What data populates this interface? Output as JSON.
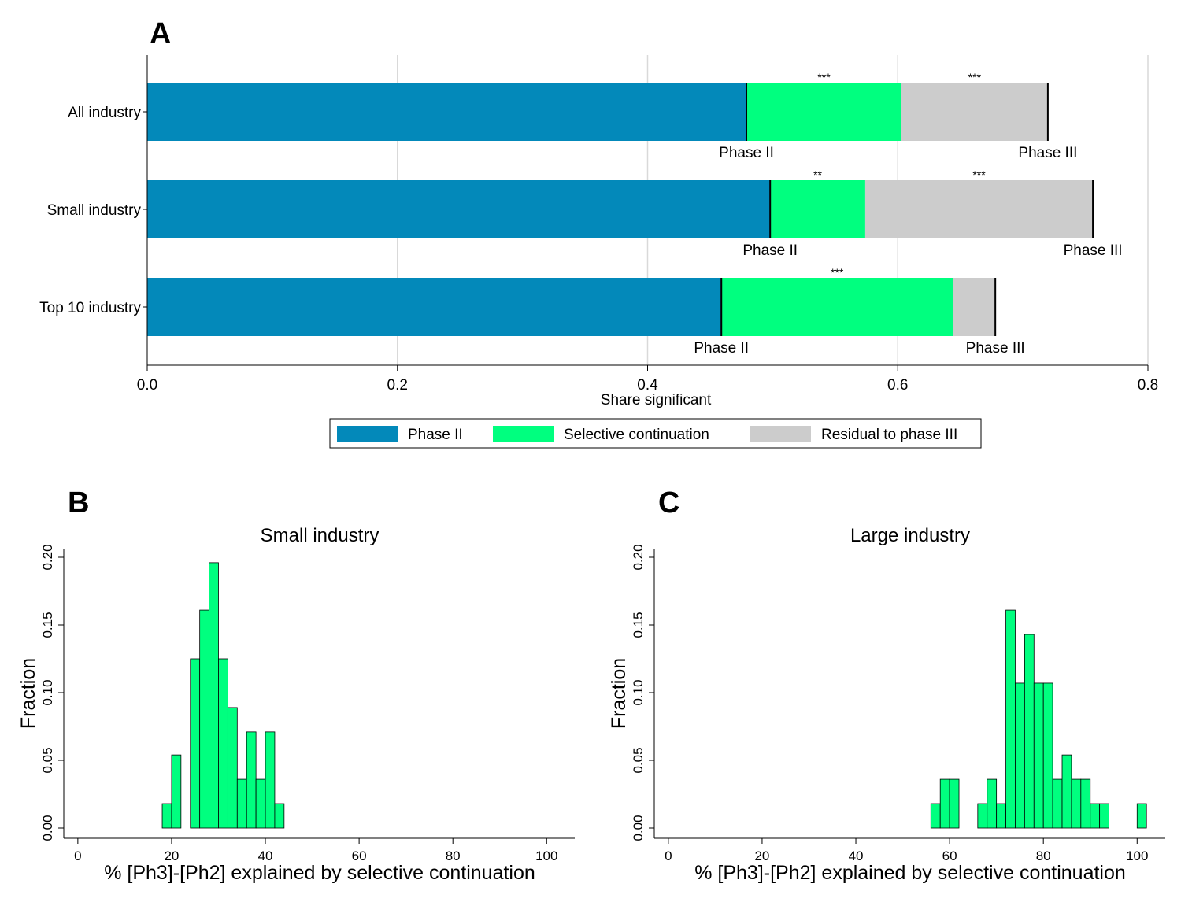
{
  "colors": {
    "phase2": "#0389BA",
    "selective": "#00FF7F",
    "residual": "#CCCCCC",
    "grid": "#D9D9D9",
    "hist_fill": "#00FF7F"
  },
  "chart_data": [
    {
      "panel": "A",
      "type": "bar",
      "orientation": "horizontal",
      "stacked": true,
      "title": "",
      "xlabel": "Share significant",
      "ylabel": "",
      "xlim": [
        0,
        0.8
      ],
      "xticks": [
        "0.0",
        "0.2",
        "0.4",
        "0.6",
        "0.8"
      ],
      "categories": [
        "All industry",
        "Small industry",
        "Top 10 industry"
      ],
      "series": [
        {
          "name": "Phase II",
          "values": [
            0.479,
            0.498,
            0.459
          ]
        },
        {
          "name": "Selective continuation",
          "values": [
            0.124,
            0.076,
            0.185
          ]
        },
        {
          "name": "Residual to phase III",
          "values": [
            0.117,
            0.182,
            0.034
          ]
        }
      ],
      "significance": [
        {
          "selective": "***",
          "residual": "***"
        },
        {
          "selective": "**",
          "residual": "***"
        },
        {
          "selective": "***",
          "residual": ""
        }
      ],
      "bar_labels": {
        "phase2": "Phase II",
        "phase3": "Phase III"
      },
      "legend": [
        "Phase II",
        "Selective continuation",
        "Residual to phase III"
      ],
      "legend_position": "bottom",
      "grid": true
    },
    {
      "panel": "B",
      "type": "bar",
      "title": "Small industry",
      "xlabel": "% [Ph3]-[Ph2] explained by selective continuation",
      "ylabel": "Fraction",
      "xlim": [
        -3,
        106
      ],
      "ylim": [
        0,
        0.205
      ],
      "xticks": [
        "0",
        "20",
        "40",
        "60",
        "80",
        "100"
      ],
      "yticks": [
        "0.00",
        "0.05",
        "0.10",
        "0.15",
        "0.20"
      ],
      "bin_width": 2,
      "bins": [
        {
          "x": 18,
          "value": 0.018
        },
        {
          "x": 20,
          "value": 0.054
        },
        {
          "x": 24,
          "value": 0.125
        },
        {
          "x": 26,
          "value": 0.161
        },
        {
          "x": 28,
          "value": 0.196
        },
        {
          "x": 30,
          "value": 0.125
        },
        {
          "x": 32,
          "value": 0.089
        },
        {
          "x": 34,
          "value": 0.036
        },
        {
          "x": 36,
          "value": 0.071
        },
        {
          "x": 38,
          "value": 0.036
        },
        {
          "x": 40,
          "value": 0.071
        },
        {
          "x": 42,
          "value": 0.018
        }
      ]
    },
    {
      "panel": "C",
      "type": "bar",
      "title": "Large industry",
      "xlabel": "% [Ph3]-[Ph2] explained by selective continuation",
      "ylabel": "Fraction",
      "xlim": [
        -3,
        106
      ],
      "ylim": [
        0,
        0.205
      ],
      "xticks": [
        "0",
        "20",
        "40",
        "60",
        "80",
        "100"
      ],
      "yticks": [
        "0.00",
        "0.05",
        "0.10",
        "0.15",
        "0.20"
      ],
      "bin_width": 2,
      "bins": [
        {
          "x": 56,
          "value": 0.018
        },
        {
          "x": 58,
          "value": 0.036
        },
        {
          "x": 60,
          "value": 0.036
        },
        {
          "x": 66,
          "value": 0.018
        },
        {
          "x": 68,
          "value": 0.036
        },
        {
          "x": 70,
          "value": 0.018
        },
        {
          "x": 72,
          "value": 0.161
        },
        {
          "x": 74,
          "value": 0.107
        },
        {
          "x": 76,
          "value": 0.143
        },
        {
          "x": 78,
          "value": 0.107
        },
        {
          "x": 80,
          "value": 0.107
        },
        {
          "x": 82,
          "value": 0.036
        },
        {
          "x": 84,
          "value": 0.054
        },
        {
          "x": 86,
          "value": 0.036
        },
        {
          "x": 88,
          "value": 0.036
        },
        {
          "x": 90,
          "value": 0.018
        },
        {
          "x": 92,
          "value": 0.018
        },
        {
          "x": 100,
          "value": 0.018
        }
      ]
    }
  ]
}
